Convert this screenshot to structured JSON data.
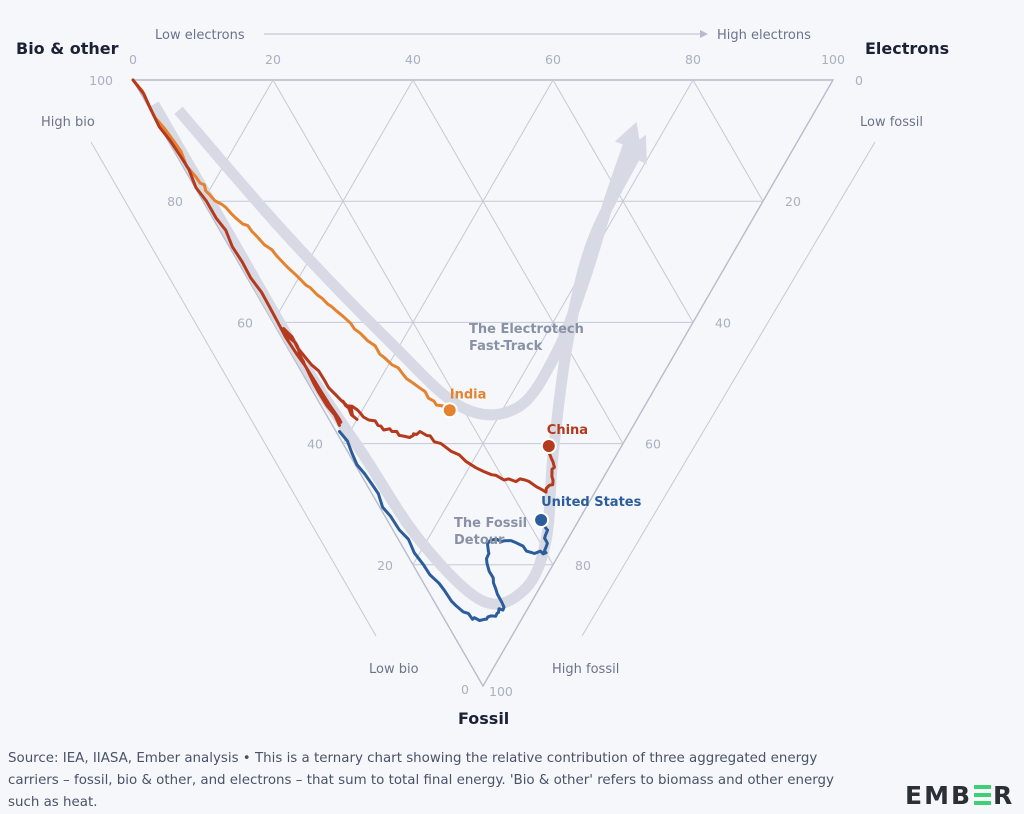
{
  "chart_data": {
    "type": "ternary",
    "axes": {
      "left_vertex": "Bio & other",
      "right_vertex": "Electrons",
      "bottom_vertex": "Fossil"
    },
    "direction_labels": {
      "electrons_low": "Low electrons",
      "electrons_high": "High electrons",
      "bio_high": "High bio",
      "bio_low": "Low bio",
      "fossil_low": "Low fossil",
      "fossil_high": "High fossil"
    },
    "ticks": {
      "electrons": [
        "0",
        "20",
        "40",
        "60",
        "80",
        "100"
      ],
      "bio": [
        "100",
        "80",
        "60",
        "40",
        "20",
        "0"
      ],
      "fossil": [
        "0",
        "20",
        "40",
        "60",
        "80",
        "100"
      ]
    },
    "grid_step": 20,
    "annotations": [
      {
        "id": "electrotech",
        "lines": [
          "The Electrotech",
          "Fast-Track"
        ],
        "at": {
          "electrons": 30,
          "fossil": 40
        }
      },
      {
        "id": "fossil-detour",
        "lines": [
          "The Fossil",
          "Detour"
        ],
        "at": {
          "electrons": 12,
          "fossil": 72
        }
      }
    ],
    "guide_arrows": [
      {
        "name": "electrotech-fast-track",
        "points": [
          {
            "e": 4,
            "f": 5
          },
          {
            "e": 9,
            "f": 25
          },
          {
            "e": 15,
            "f": 43
          },
          {
            "e": 20,
            "f": 54
          },
          {
            "e": 28,
            "f": 54
          },
          {
            "e": 38,
            "f": 45
          },
          {
            "e": 48,
            "f": 33
          },
          {
            "e": 58,
            "f": 20
          },
          {
            "e": 66,
            "f": 10
          }
        ]
      },
      {
        "name": "fossil-detour",
        "points": [
          {
            "e": 1,
            "f": 4
          },
          {
            "e": 1,
            "f": 25
          },
          {
            "e": 1,
            "f": 48
          },
          {
            "e": 2,
            "f": 62
          },
          {
            "e": 3,
            "f": 76
          },
          {
            "e": 7,
            "f": 86
          },
          {
            "e": 14,
            "f": 84
          },
          {
            "e": 21,
            "f": 76
          },
          {
            "e": 29,
            "f": 62
          },
          {
            "e": 40,
            "f": 44
          },
          {
            "e": 52,
            "f": 27
          },
          {
            "e": 66,
            "f": 12
          }
        ]
      }
    ],
    "series": [
      {
        "name": "India",
        "color": "#e5822f",
        "label": "India",
        "points": [
          {
            "e": 0.0,
            "f": 0.0
          },
          {
            "e": 0.5,
            "f": 8
          },
          {
            "e": 1,
            "f": 16
          },
          {
            "e": 1.5,
            "f": 19
          },
          {
            "e": 3,
            "f": 22
          },
          {
            "e": 4.5,
            "f": 25
          },
          {
            "e": 6,
            "f": 29
          },
          {
            "e": 7.5,
            "f": 33
          },
          {
            "e": 9,
            "f": 36
          },
          {
            "e": 10.5,
            "f": 39
          },
          {
            "e": 12,
            "f": 43
          },
          {
            "e": 13.5,
            "f": 47
          },
          {
            "e": 15,
            "f": 50
          },
          {
            "e": 16.5,
            "f": 53
          },
          {
            "e": 17.5,
            "f": 55
          },
          {
            "e": 18.0,
            "f": 54.5
          }
        ],
        "endpoint": {
          "electrons": 18,
          "fossil": 54.5,
          "bio": 27.5
        }
      },
      {
        "name": "China",
        "color": "#b5391c",
        "label": "China",
        "points": [
          {
            "e": 0.0,
            "f": 0.0
          },
          {
            "e": 0.3,
            "f": 10
          },
          {
            "e": 0.5,
            "f": 20
          },
          {
            "e": 0.6,
            "f": 30
          },
          {
            "e": 0.7,
            "f": 40
          },
          {
            "e": 0.8,
            "f": 50
          },
          {
            "e": 1.0,
            "f": 57
          },
          {
            "e": 1.5,
            "f": 56
          },
          {
            "e": 1.0,
            "f": 47
          },
          {
            "e": 1.5,
            "f": 44
          },
          {
            "e": 1.0,
            "f": 41
          },
          {
            "e": 2,
            "f": 47
          },
          {
            "e": 3,
            "f": 52
          },
          {
            "e": 4,
            "f": 56
          },
          {
            "e": 3.5,
            "f": 53
          },
          {
            "e": 5,
            "f": 55
          },
          {
            "e": 6.5,
            "f": 57
          },
          {
            "e": 8,
            "f": 58
          },
          {
            "e": 10,
            "f": 59
          },
          {
            "e": 12,
            "f": 58
          },
          {
            "e": 14,
            "f": 60
          },
          {
            "e": 17,
            "f": 64
          },
          {
            "e": 20,
            "f": 66
          },
          {
            "e": 23,
            "f": 66
          },
          {
            "e": 25,
            "f": 68
          },
          {
            "e": 27,
            "f": 66
          },
          {
            "e": 28.5,
            "f": 63
          },
          {
            "e": 29.2,
            "f": 60.4
          }
        ],
        "endpoint": {
          "electrons": 29.2,
          "fossil": 60.4,
          "bio": 10.4
        }
      },
      {
        "name": "United States",
        "color": "#2c5d9a",
        "label": "United States",
        "points": [
          {
            "e": 0.5,
            "f": 58
          },
          {
            "e": 0.6,
            "f": 65
          },
          {
            "e": 0.8,
            "f": 72
          },
          {
            "e": 1.5,
            "f": 80
          },
          {
            "e": 2.5,
            "f": 86
          },
          {
            "e": 4,
            "f": 89
          },
          {
            "e": 6,
            "f": 89
          },
          {
            "e": 8,
            "f": 88
          },
          {
            "e": 9.5,
            "f": 87
          },
          {
            "e": 10,
            "f": 83
          },
          {
            "e": 11,
            "f": 79
          },
          {
            "e": 13,
            "f": 76
          },
          {
            "e": 16,
            "f": 76
          },
          {
            "e": 18,
            "f": 78
          },
          {
            "e": 20,
            "f": 78
          },
          {
            "e": 21,
            "f": 76
          },
          {
            "e": 22,
            "f": 74
          },
          {
            "e": 22,
            "f": 72.6
          }
        ],
        "endpoint": {
          "electrons": 22,
          "fossil": 72.6,
          "bio": 5.4
        }
      }
    ]
  },
  "footer": {
    "source_text": "Source: IEA, IIASA, Ember analysis • This is a ternary chart showing the relative contribution of three aggregated energy carriers – fossil, bio & other, and electrons – that sum to total final energy. 'Bio & other' refers to biomass and other energy such as heat.",
    "logo": {
      "part1": "EMB",
      "part2": "R"
    }
  },
  "colors": {
    "background": "#f5f7fb",
    "grid": "#c4c9d6",
    "guide": "#d7dae4",
    "logo_accent": "#3fcf76"
  }
}
